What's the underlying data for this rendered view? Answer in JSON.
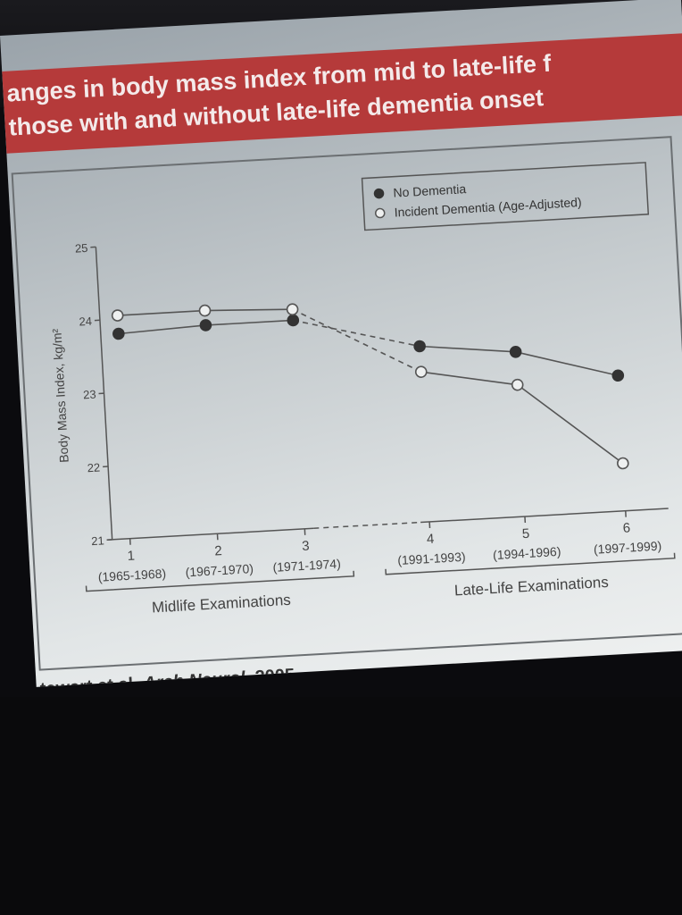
{
  "slide": {
    "title_line1": "anges in body mass index from mid to late-life f",
    "title_line2": "those with and without late-life dementia onset",
    "citation_authors": "tewart et al. ",
    "citation_journal": "Arch Neurol.",
    "citation_year": " 2005"
  },
  "chart_data": {
    "type": "line",
    "ylabel": "Body Mass Index, kg/m²",
    "ylim": [
      21,
      25
    ],
    "yticks": [
      "25",
      "24",
      "23",
      "22",
      "21"
    ],
    "x": [
      1,
      2,
      3,
      4,
      5,
      6
    ],
    "x_tick_labels": [
      "1",
      "2",
      "3",
      "4",
      "5",
      "6"
    ],
    "x_period_labels": [
      "(1965-1968)",
      "(1967-1970)",
      "(1971-1974)",
      "(1991-1993)",
      "(1994-1996)",
      "(1997-1999)"
    ],
    "groups": [
      {
        "label": "Midlife Examinations",
        "exams": [
          1,
          2,
          3
        ]
      },
      {
        "label": "Late-Life Examinations",
        "exams": [
          4,
          5,
          6
        ]
      }
    ],
    "gap_between": [
      3,
      4
    ],
    "legend_position": "top-right",
    "series": [
      {
        "name": "No Dementia",
        "marker": "filled",
        "values": [
          23.8,
          23.85,
          23.85,
          23.4,
          23.25,
          22.85
        ]
      },
      {
        "name": "Incident Dementia (Age-Adjusted)",
        "marker": "open",
        "values": [
          24.05,
          24.05,
          24.0,
          23.05,
          22.8,
          21.65
        ]
      }
    ],
    "colors": {
      "line": "#555555",
      "marker_fill": "#333333"
    }
  }
}
